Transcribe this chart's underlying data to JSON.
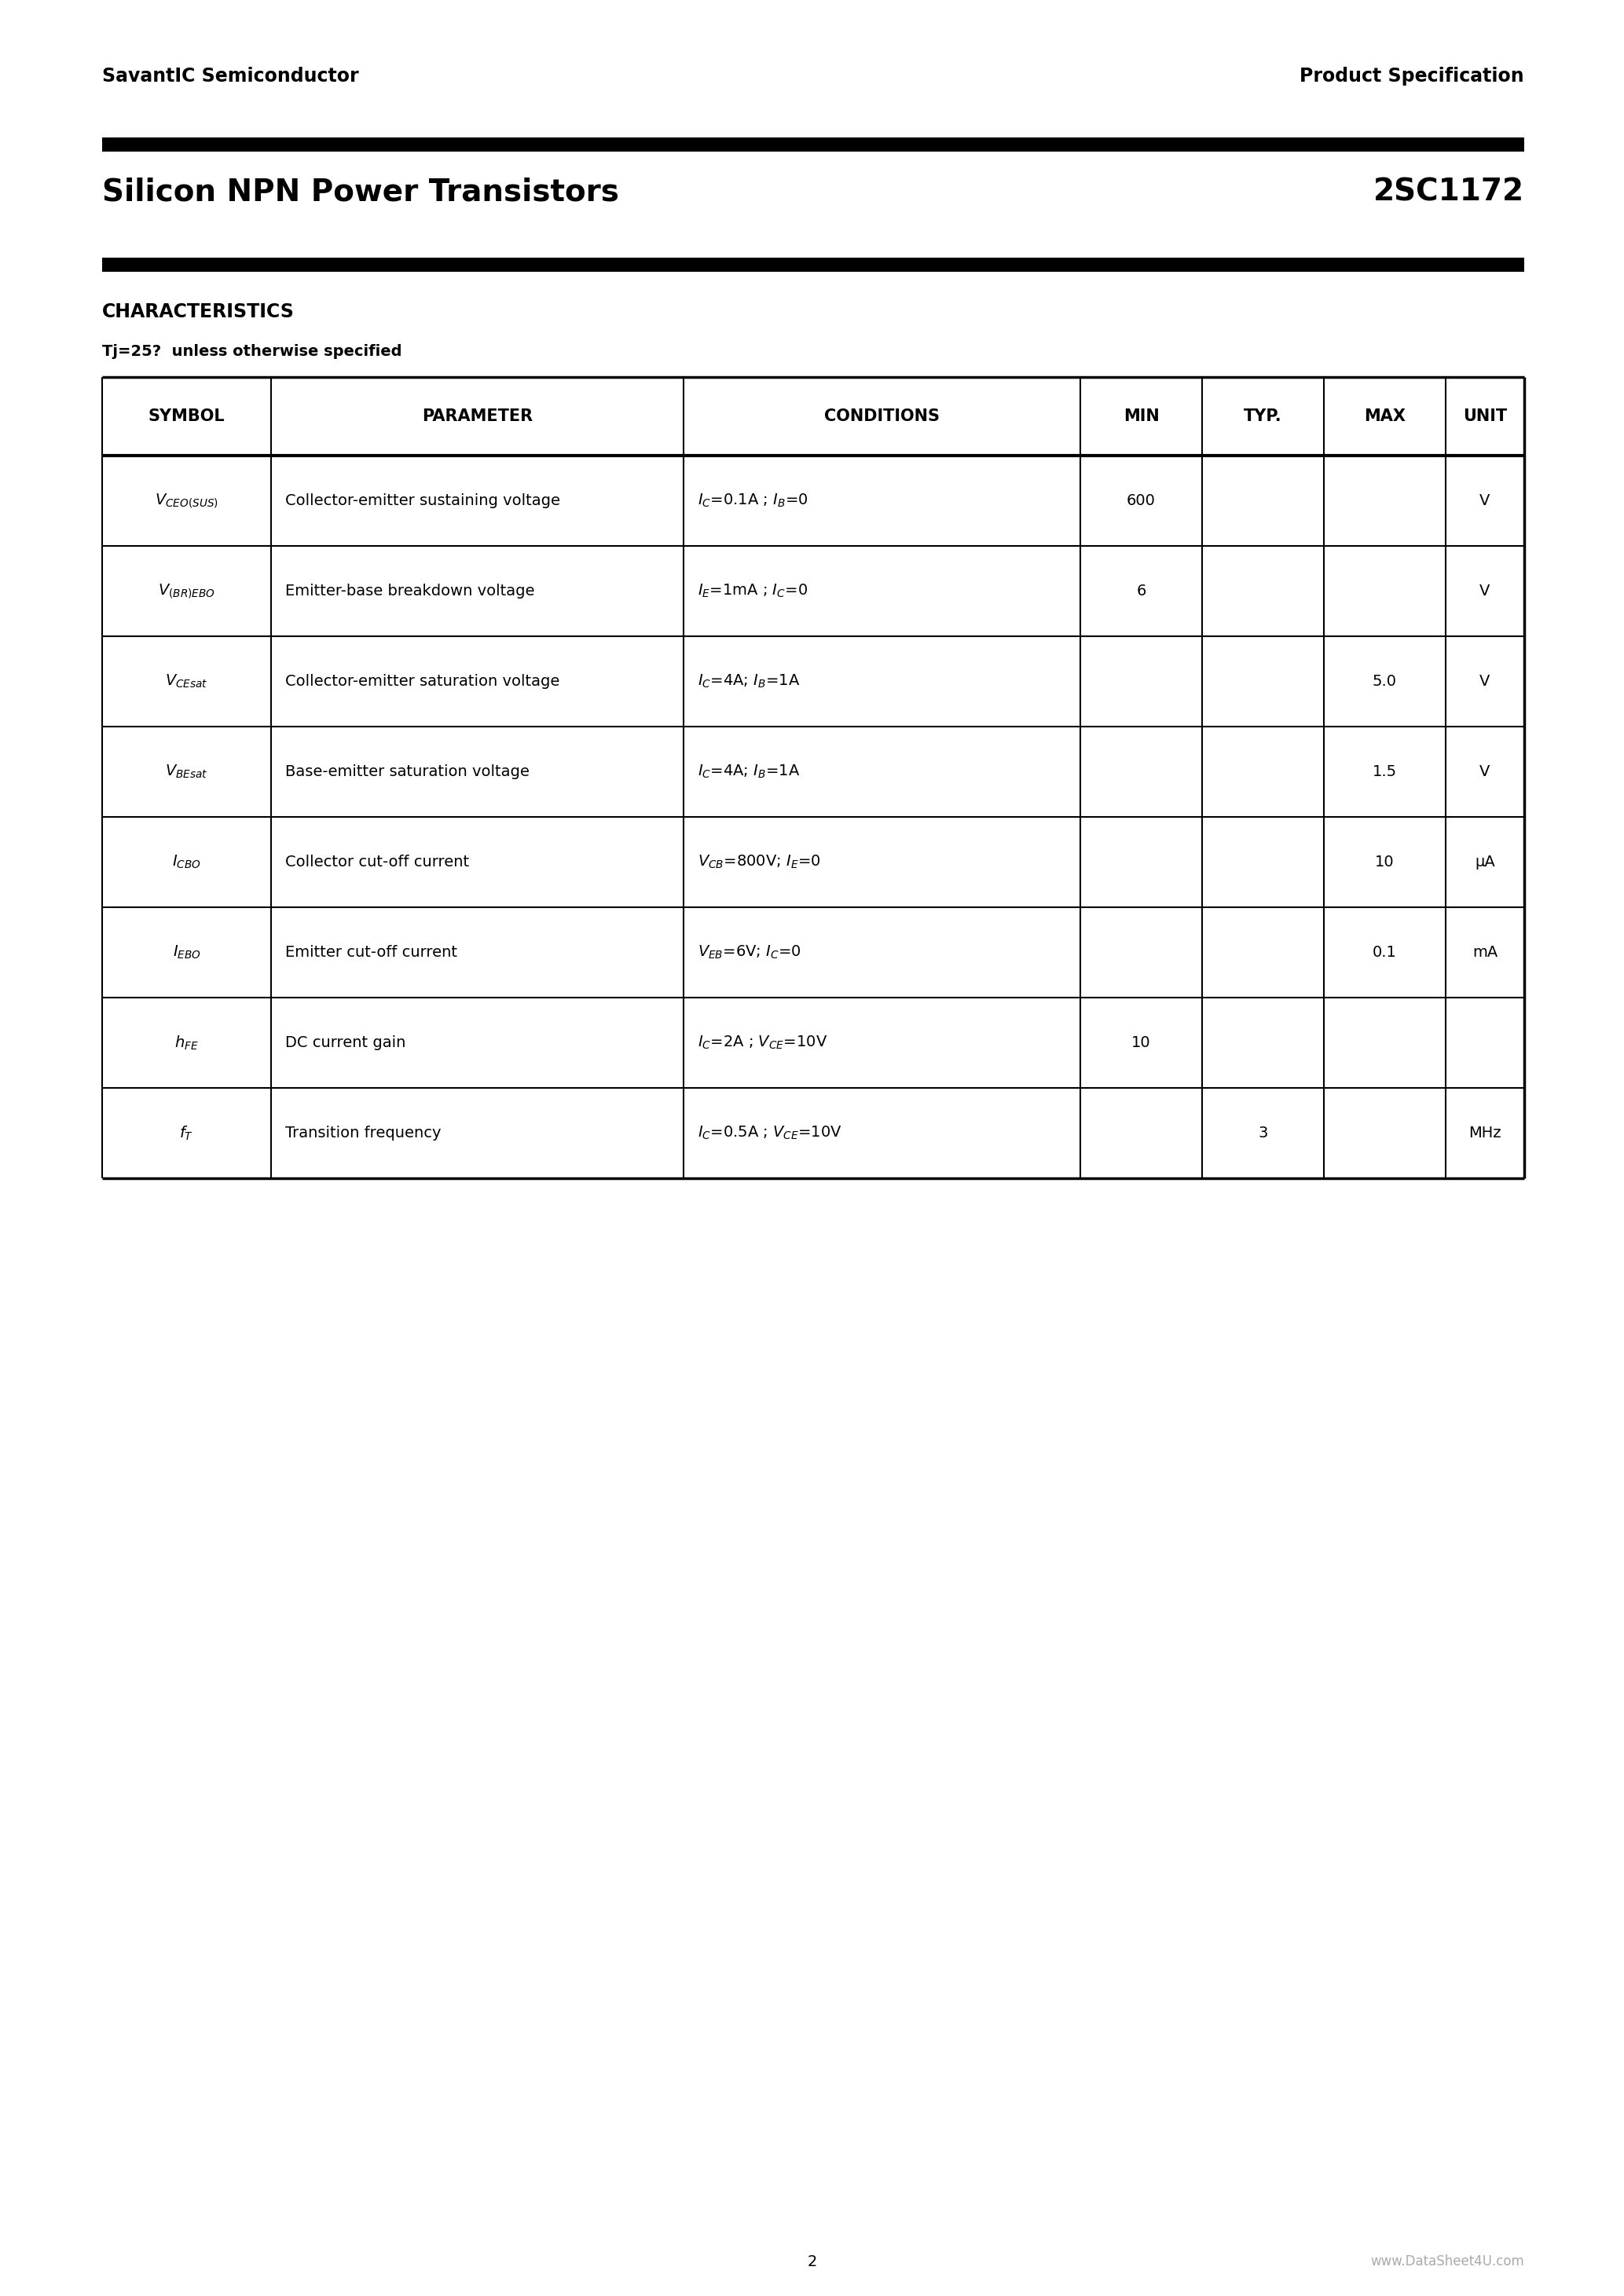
{
  "company": "SavantIC Semiconductor",
  "product_spec": "Product Specification",
  "title": "Silicon NPN Power Transistors",
  "part_number": "2SC1172",
  "section": "CHARACTERISTICS",
  "subtitle": "Tj=25?  unless otherwise specified",
  "headers": [
    "SYMBOL",
    "PARAMETER",
    "CONDITIONS",
    "MIN",
    "TYP.",
    "MAX",
    "UNIT"
  ],
  "rows": [
    {
      "symbol_math": "$V_{CEO(SUS)}$",
      "parameter": "Collector-emitter sustaining voltage",
      "conditions_math": "$I_C$=0.1A ; $I_B$=0",
      "min": "600",
      "typ": "",
      "max": "",
      "unit": "V"
    },
    {
      "symbol_math": "$V_{(BR)EBO}$",
      "parameter": "Emitter-base breakdown voltage",
      "conditions_math": "$I_E$=1mA ; $I_C$=0",
      "min": "6",
      "typ": "",
      "max": "",
      "unit": "V"
    },
    {
      "symbol_math": "$V_{CEsat}$",
      "parameter": "Collector-emitter saturation voltage",
      "conditions_math": "$I_C$=4A; $I_B$=1A",
      "min": "",
      "typ": "",
      "max": "5.0",
      "unit": "V"
    },
    {
      "symbol_math": "$V_{BEsat}$",
      "parameter": "Base-emitter saturation voltage",
      "conditions_math": "$I_C$=4A; $I_B$=1A",
      "min": "",
      "typ": "",
      "max": "1.5",
      "unit": "V"
    },
    {
      "symbol_math": "$I_{CBO}$",
      "parameter": "Collector cut-off current",
      "conditions_math": "$V_{CB}$=800V; $I_E$=0",
      "min": "",
      "typ": "",
      "max": "10",
      "unit": "μA"
    },
    {
      "symbol_math": "$I_{EBO}$",
      "parameter": "Emitter cut-off current",
      "conditions_math": "$V_{EB}$=6V; $I_C$=0",
      "min": "",
      "typ": "",
      "max": "0.1",
      "unit": "mA"
    },
    {
      "symbol_math": "$h_{FE}$",
      "parameter": "DC current gain",
      "conditions_math": "$I_C$=2A ; $V_{CE}$=10V",
      "min": "10",
      "typ": "",
      "max": "",
      "unit": ""
    },
    {
      "symbol_math": "$f_T$",
      "parameter": "Transition frequency",
      "conditions_math": "$I_C$=0.5A ; $V_{CE}$=10V",
      "min": "",
      "typ": "3",
      "max": "",
      "unit": "MHz"
    }
  ],
  "footer_page": "2",
  "footer_url": "www.DataSheet4U.com",
  "bg_color": "#ffffff"
}
